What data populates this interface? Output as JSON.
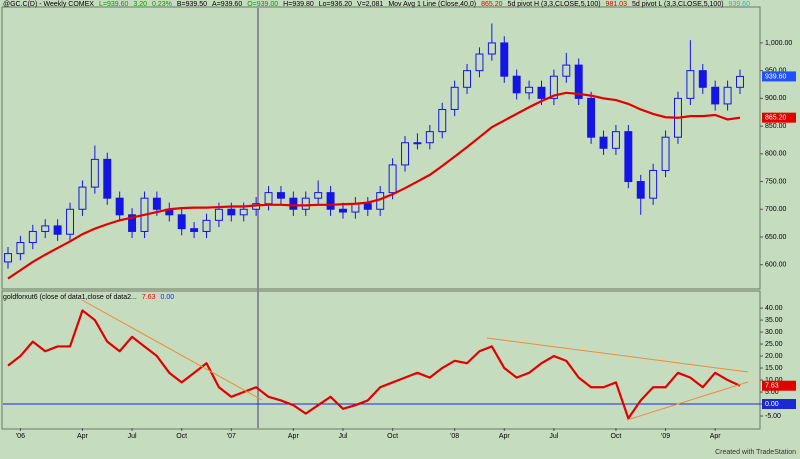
{
  "chart_data": [
    {
      "type": "candlestick",
      "header": [
        {
          "text": "@GC.C(D) - Weekly COMEX",
          "color": "#000000"
        },
        {
          "text": "L=939.60",
          "color": "#00a000"
        },
        {
          "text": "3.20",
          "color": "#00a000"
        },
        {
          "text": "0.23%",
          "color": "#00a000"
        },
        {
          "text": "B=939.50",
          "color": "#000000"
        },
        {
          "text": "A=939.60",
          "color": "#000000"
        },
        {
          "text": "O=939.00",
          "color": "#00a000"
        },
        {
          "text": "H=939.80",
          "color": "#000000"
        },
        {
          "text": "Lo=936.20",
          "color": "#000000"
        },
        {
          "text": "V=2,081",
          "color": "#000000"
        },
        {
          "text": "Mov Avg 1 Line (Close,40,0)",
          "color": "#000000"
        },
        {
          "text": "865.20",
          "color": "#e00000"
        },
        {
          "text": "5d pivot H (3,3,CLOSE,5,100)",
          "color": "#000000"
        },
        {
          "text": "981.03",
          "color": "#e00000"
        },
        {
          "text": "5d pivot L (3,3,CLOSE,5,100)",
          "color": "#000000"
        },
        {
          "text": "939.60",
          "color": "#00c8e0"
        }
      ],
      "open": [
        605,
        620,
        640,
        660,
        670,
        655,
        700,
        740,
        790,
        720,
        690,
        660,
        720,
        700,
        690,
        665,
        660,
        680,
        700,
        690,
        700,
        710,
        730,
        720,
        700,
        720,
        730,
        700,
        695,
        710,
        700,
        730,
        780,
        820,
        820,
        840,
        880,
        920,
        950,
        980,
        1000,
        940,
        910,
        920,
        900,
        940,
        960,
        900,
        830,
        810,
        840,
        750,
        720,
        770,
        830,
        900,
        950,
        920,
        890,
        920
      ],
      "high": [
        632,
        652,
        672,
        682,
        682,
        712,
        752,
        815,
        802,
        732,
        702,
        732,
        732,
        712,
        702,
        677,
        692,
        712,
        712,
        712,
        722,
        742,
        742,
        732,
        732,
        752,
        742,
        712,
        722,
        722,
        742,
        792,
        832,
        837,
        852,
        892,
        932,
        962,
        992,
        1035,
        1012,
        952,
        932,
        932,
        952,
        982,
        972,
        912,
        842,
        852,
        852,
        762,
        782,
        842,
        912,
        1005,
        962,
        932,
        932,
        952
      ],
      "low": [
        593,
        608,
        628,
        648,
        643,
        643,
        688,
        728,
        708,
        678,
        648,
        648,
        688,
        678,
        653,
        648,
        648,
        668,
        678,
        678,
        688,
        698,
        708,
        688,
        688,
        708,
        688,
        683,
        683,
        688,
        688,
        718,
        768,
        808,
        808,
        828,
        868,
        908,
        938,
        968,
        928,
        898,
        898,
        888,
        888,
        928,
        888,
        818,
        798,
        798,
        738,
        690,
        708,
        758,
        818,
        888,
        908,
        878,
        878,
        908
      ],
      "close": [
        620,
        640,
        660,
        670,
        655,
        700,
        740,
        790,
        720,
        690,
        660,
        720,
        700,
        690,
        665,
        660,
        680,
        700,
        690,
        700,
        710,
        730,
        720,
        700,
        720,
        730,
        700,
        695,
        710,
        700,
        730,
        780,
        820,
        820,
        840,
        880,
        920,
        950,
        980,
        1000,
        940,
        910,
        920,
        900,
        940,
        960,
        900,
        830,
        810,
        840,
        750,
        720,
        770,
        830,
        900,
        950,
        920,
        890,
        920,
        939.6
      ],
      "color": "#1414e6",
      "ma": {
        "color": "#e00000",
        "values": [
          575,
          590,
          605,
          618,
          630,
          642,
          655,
          665,
          673,
          680,
          685,
          690,
          695,
          700,
          702,
          703,
          703,
          704,
          705,
          705,
          707,
          708,
          708,
          707,
          707,
          708,
          708,
          709,
          710,
          712,
          718,
          727,
          738,
          750,
          762,
          778,
          795,
          812,
          830,
          848,
          860,
          872,
          884,
          895,
          905,
          910,
          908,
          905,
          900,
          897,
          890,
          880,
          872,
          866,
          865,
          868,
          868,
          870,
          862,
          865.2
        ]
      },
      "ylim": [
        558,
        1063
      ],
      "yticks": [
        {
          "value": 600,
          "label": "600.00"
        },
        {
          "value": 650,
          "label": "650.00"
        },
        {
          "value": 700,
          "label": "700.00"
        },
        {
          "value": 750,
          "label": "750.00"
        },
        {
          "value": 800,
          "label": "800.00"
        },
        {
          "value": 850,
          "label": "850.00"
        },
        {
          "value": 900,
          "label": "900.00"
        },
        {
          "value": 950,
          "label": "950.00"
        },
        {
          "value": 1000,
          "label": "1,000.00"
        }
      ],
      "markers": [
        {
          "value": 939.6,
          "label": "939.60",
          "color": "#2050ff"
        },
        {
          "value": 865.2,
          "label": "865.20",
          "color": "#e00000"
        }
      ]
    },
    {
      "type": "line",
      "header": [
        {
          "text": "goldforxut6 (close of data1,close of data2...",
          "color": "#000000"
        },
        {
          "text": "7.63",
          "color": "#e00000"
        },
        {
          "text": "0.00",
          "color": "#1a2ad0"
        }
      ],
      "categories": [
        null,
        "'06",
        null,
        null,
        null,
        null,
        "Apr",
        null,
        null,
        null,
        "Jul",
        null,
        null,
        null,
        "Oct",
        null,
        null,
        null,
        "'07",
        null,
        null,
        null,
        null,
        "Apr",
        null,
        null,
        null,
        "Jul",
        null,
        null,
        null,
        "Oct",
        null,
        null,
        null,
        null,
        "'08",
        null,
        null,
        null,
        "Apr",
        null,
        null,
        null,
        "Jul",
        null,
        null,
        null,
        null,
        "Oct",
        null,
        null,
        null,
        "'09",
        null,
        null,
        null,
        "Apr",
        null,
        null
      ],
      "series": [
        {
          "color": "#e00000",
          "values": [
            16,
            20,
            26,
            22,
            24,
            24,
            39,
            35,
            26,
            22,
            28,
            24,
            20,
            13,
            9,
            13,
            17,
            7,
            3,
            5,
            7,
            3,
            1.5,
            -0.5,
            -4,
            -0.5,
            3,
            -2,
            -0.5,
            1.5,
            7,
            9,
            11,
            13,
            11,
            15,
            18,
            17,
            22,
            24,
            15,
            11,
            13,
            17,
            20,
            18,
            11,
            7,
            7,
            9,
            -6,
            1.5,
            7,
            7,
            13,
            11,
            7,
            13,
            10,
            7.63
          ]
        }
      ],
      "hline": {
        "value": 0,
        "color": "#1a2ad0"
      },
      "ylim": [
        -10,
        46.7
      ],
      "yticks": [
        {
          "value": -5,
          "label": "-5.00"
        },
        {
          "value": 0,
          "label": "0.00"
        },
        {
          "value": 5,
          "label": "5.00"
        },
        {
          "value": 10,
          "label": "10.00"
        },
        {
          "value": 15,
          "label": "15.00"
        },
        {
          "value": 20,
          "label": "20.00"
        },
        {
          "value": 25,
          "label": "25.00"
        },
        {
          "value": 30,
          "label": "30.00"
        },
        {
          "value": 35,
          "label": "35.00"
        },
        {
          "value": 40,
          "label": "40.00"
        }
      ],
      "markers": [
        {
          "value": 7.63,
          "label": "7.63",
          "color": "#e00000"
        },
        {
          "value": 0,
          "label": "0.00",
          "color": "#1a2ad0"
        }
      ]
    }
  ],
  "footer": "Created with TradeStation"
}
